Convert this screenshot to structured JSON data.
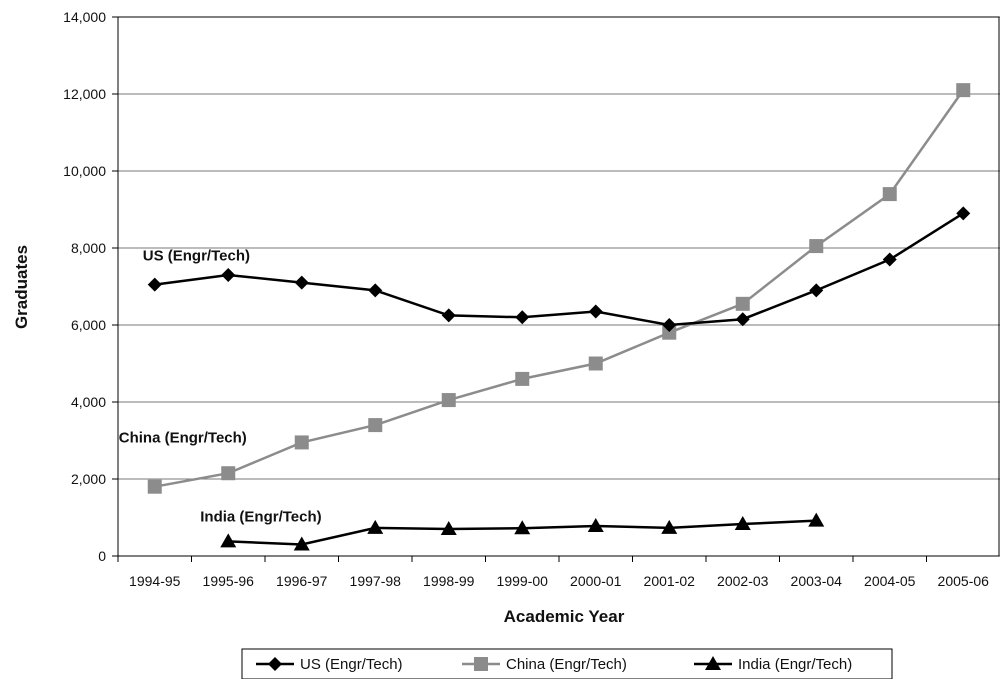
{
  "chart_data": {
    "type": "line",
    "xlabel": "Academic Year",
    "ylabel": "Graduates",
    "ylim": [
      0,
      14000
    ],
    "ytick_step": 2000,
    "grid": true,
    "legend_position": "bottom",
    "categories": [
      "1994-95",
      "1995-96",
      "1996-97",
      "1997-98",
      "1998-99",
      "1999-00",
      "2000-01",
      "2001-02",
      "2002-03",
      "2003-04",
      "2004-05",
      "2005-06"
    ],
    "series": [
      {
        "name": "US (Engr/Tech)",
        "color": "#000000",
        "marker": "diamond",
        "values": [
          7050,
          7300,
          7100,
          6900,
          6250,
          6200,
          6350,
          6000,
          6150,
          6900,
          7700,
          8900
        ]
      },
      {
        "name": "China (Engr/Tech)",
        "color": "#8c8c8c",
        "marker": "square",
        "values": [
          1800,
          2150,
          2950,
          3400,
          4050,
          4600,
          5000,
          5800,
          6550,
          8050,
          9400,
          12100
        ]
      },
      {
        "name": "India (Engr/Tech)",
        "color": "#000000",
        "marker": "triangle",
        "values": [
          null,
          380,
          300,
          730,
          700,
          720,
          780,
          730,
          830,
          920,
          null,
          null
        ]
      }
    ],
    "annotations": [
      {
        "text": "US (Engr/Tech)",
        "series": 0
      },
      {
        "text": "China (Engr/Tech)",
        "series": 1
      },
      {
        "text": "India (Engr/Tech)",
        "series": 2
      }
    ]
  }
}
